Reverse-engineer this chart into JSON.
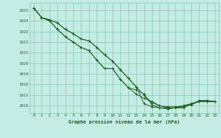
{
  "title": "Graphe pression niveau de la mer (hPa)",
  "background_color": "#c5ece4",
  "grid_color": "#7cc4a8",
  "line_color": "#1a5c1a",
  "xlim": [
    -0.5,
    23.5
  ],
  "ylim": [
    1015.3,
    1025.7
  ],
  "yticks": [
    1016,
    1017,
    1018,
    1019,
    1020,
    1021,
    1022,
    1023,
    1024,
    1025
  ],
  "xticks": [
    0,
    1,
    2,
    3,
    4,
    5,
    6,
    7,
    8,
    9,
    10,
    11,
    12,
    13,
    14,
    15,
    16,
    17,
    18,
    19,
    20,
    21,
    22,
    23
  ],
  "series": [
    [
      1025.2,
      1024.3,
      1024.0,
      1023.2,
      1022.5,
      1022.0,
      1021.5,
      1021.2,
      1020.3,
      1019.5,
      1019.5,
      1018.5,
      1017.7,
      1017.1,
      1016.7,
      1016.4,
      1016.0,
      1015.9,
      1015.9,
      1016.0,
      1016.2,
      1016.4,
      1016.4,
      1016.4
    ],
    [
      1025.2,
      1024.3,
      1024.0,
      1023.2,
      1022.5,
      1022.0,
      1021.5,
      1021.2,
      1020.3,
      1019.5,
      1019.5,
      1018.5,
      1017.7,
      1017.5,
      1017.1,
      1016.1,
      1015.8,
      1015.7,
      1015.8,
      1015.9,
      1016.1,
      1016.5,
      1016.5,
      1016.4
    ],
    [
      1025.2,
      1024.3,
      1024.1,
      1023.8,
      1023.2,
      1022.8,
      1022.3,
      1022.1,
      1021.5,
      1020.8,
      1020.2,
      1019.4,
      1018.6,
      1017.8,
      1016.2,
      1015.9,
      1015.8,
      1015.8,
      1015.8,
      1015.8,
      1016.2,
      1016.4,
      1016.4,
      1016.4
    ],
    [
      1025.2,
      1024.3,
      1024.1,
      1023.8,
      1023.2,
      1022.8,
      1022.3,
      1022.1,
      1021.5,
      1020.8,
      1020.2,
      1019.4,
      1018.6,
      1017.8,
      1017.0,
      1016.3,
      1016.0,
      1015.8,
      1015.8,
      1016.0,
      1016.1,
      1016.4,
      1016.4,
      1016.4
    ]
  ]
}
